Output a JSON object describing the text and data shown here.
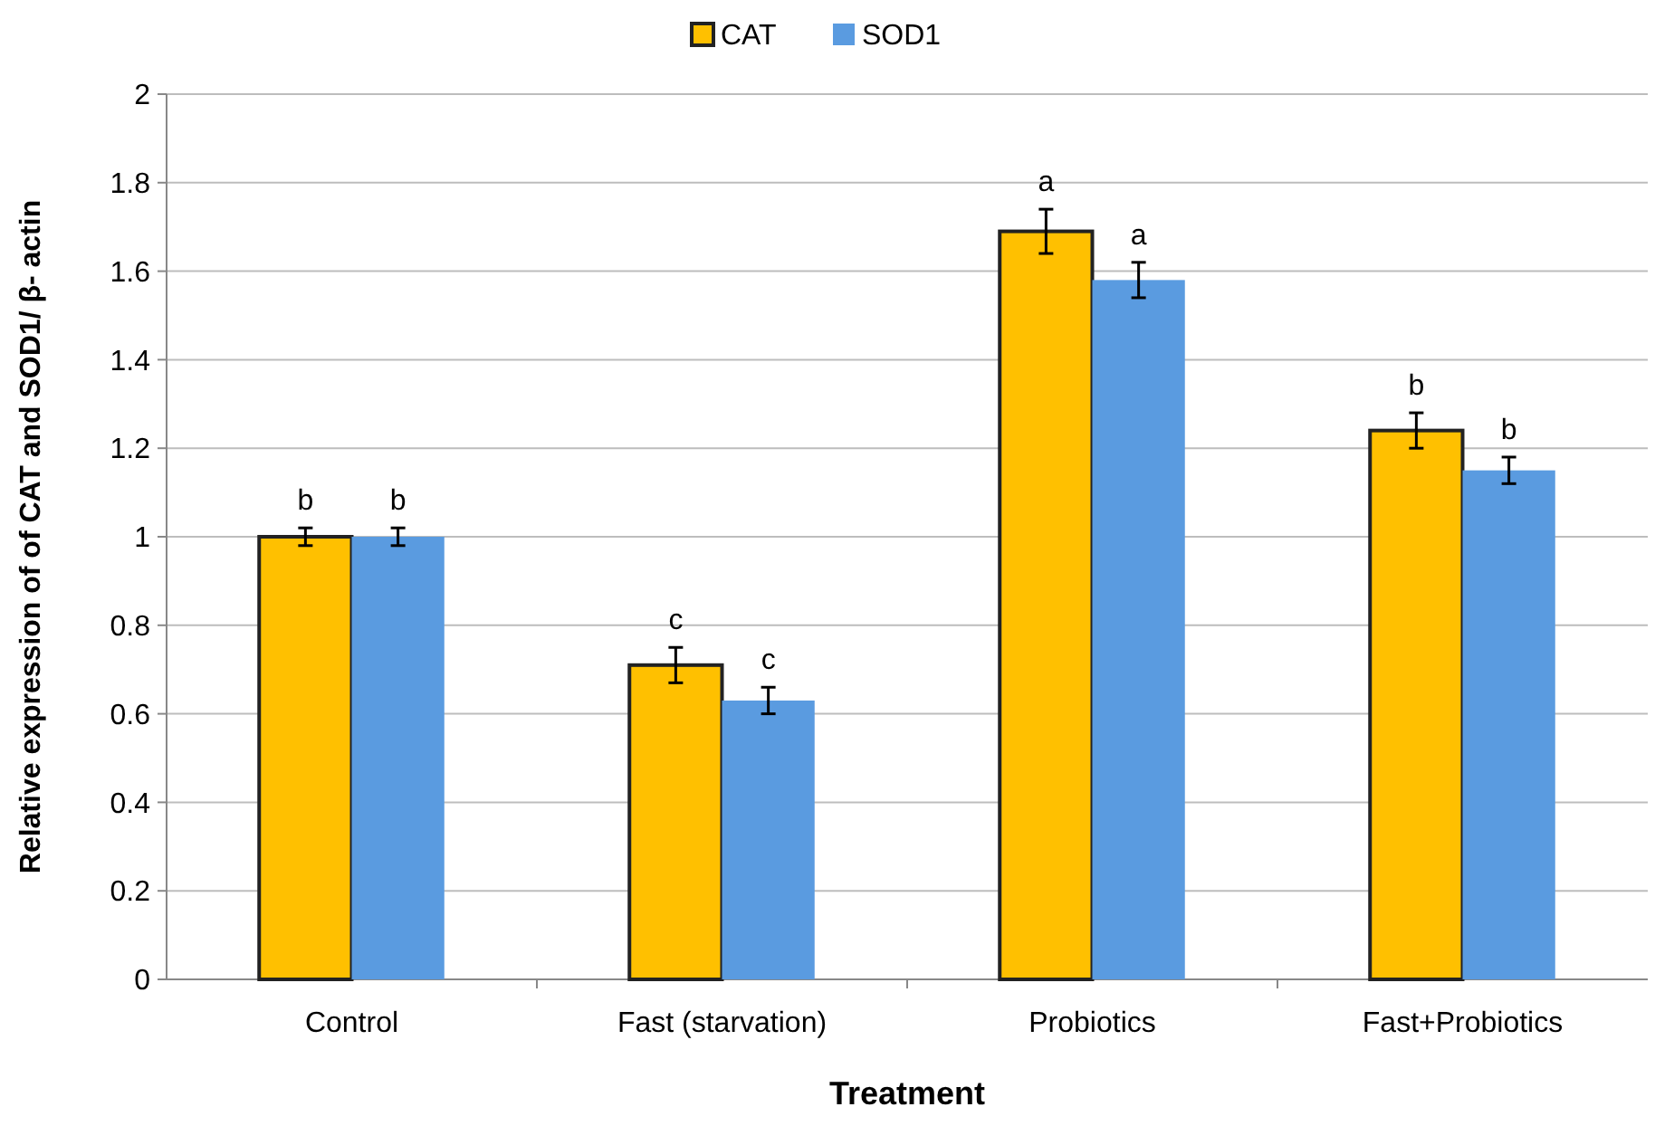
{
  "chart_data": {
    "type": "bar",
    "categories": [
      "Control",
      "Fast (starvation)",
      "Probiotics",
      "Fast+Probiotics"
    ],
    "series": [
      {
        "name": "CAT",
        "color": "#ffc000",
        "values": [
          1.0,
          0.71,
          1.69,
          1.24
        ],
        "errors": [
          0.02,
          0.04,
          0.05,
          0.04
        ]
      },
      {
        "name": "SOD1",
        "color": "#5a9be0",
        "values": [
          1.0,
          0.63,
          1.58,
          1.15
        ],
        "errors": [
          0.02,
          0.03,
          0.04,
          0.03
        ]
      }
    ],
    "xlabel": "Treatment",
    "ylabel": "Relative expression of of CAT and SOD1/ β- actin",
    "ylim": [
      0,
      2
    ],
    "yticks": [
      0,
      0.2,
      0.4,
      0.6,
      0.8,
      1,
      1.2,
      1.4,
      1.6,
      1.8,
      2
    ],
    "grid": "y",
    "legend": "top",
    "annotations": [
      "b",
      "b",
      "c",
      "c",
      "a",
      "a",
      "b",
      "b"
    ]
  }
}
